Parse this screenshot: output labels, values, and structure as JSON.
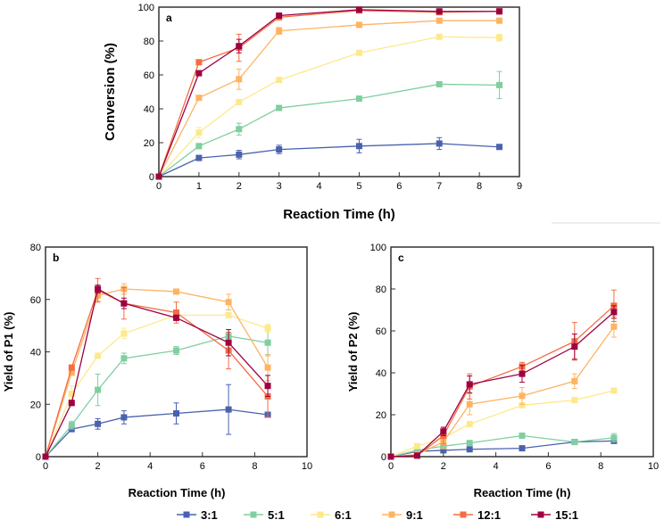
{
  "chart_data": [
    {
      "type": "line",
      "panel": "a",
      "title": "",
      "xlabel": "Reaction Time (h)",
      "ylabel": "Conversion (%)",
      "xlim": [
        0,
        9
      ],
      "ylim": [
        0,
        100
      ],
      "xticks": [
        0,
        1,
        2,
        3,
        4,
        5,
        6,
        7,
        8,
        9
      ],
      "yticks": [
        0,
        20,
        40,
        60,
        80,
        100
      ],
      "x": [
        0,
        1,
        2,
        3,
        5,
        7,
        8.5
      ],
      "series": [
        {
          "name": "3:1",
          "values": [
            0,
            11,
            13,
            16,
            18,
            19.5,
            17.5
          ],
          "err": [
            0,
            1.5,
            2.5,
            2.5,
            4,
            3.5,
            1
          ]
        },
        {
          "name": "5:1",
          "values": [
            0,
            18,
            28,
            40.5,
            46,
            54.5,
            54
          ],
          "err": [
            0,
            1.5,
            3.5,
            1.5,
            1,
            1,
            8
          ]
        },
        {
          "name": "6:1",
          "values": [
            0,
            26,
            44,
            57,
            73,
            82.5,
            82
          ],
          "err": [
            0,
            3,
            1.5,
            1.5,
            1,
            1,
            2
          ]
        },
        {
          "name": "9:1",
          "values": [
            0,
            46.5,
            57.5,
            86,
            89.5,
            92,
            92
          ],
          "err": [
            0,
            1,
            6,
            2,
            1,
            1,
            1
          ]
        },
        {
          "name": "12:1",
          "values": [
            0,
            67.5,
            76,
            94,
            98,
            97,
            97.5
          ],
          "err": [
            0,
            1,
            8,
            1,
            1,
            1,
            1
          ]
        },
        {
          "name": "15:1",
          "values": [
            0,
            61,
            77,
            95,
            98.5,
            97.5,
            97.5
          ],
          "err": [
            0,
            1,
            4,
            1,
            1,
            1,
            1
          ]
        }
      ]
    },
    {
      "type": "line",
      "panel": "b",
      "title": "",
      "xlabel": "Reaction Time (h)",
      "ylabel": "Yield of P1 (%)",
      "xlim": [
        0,
        10
      ],
      "ylim": [
        0,
        80
      ],
      "xticks": [
        0,
        2,
        4,
        6,
        8,
        10
      ],
      "yticks": [
        0,
        20,
        40,
        60,
        80
      ],
      "x": [
        0,
        1,
        2,
        3,
        5,
        7,
        8.5
      ],
      "series": [
        {
          "name": "3:1",
          "values": [
            0,
            10.5,
            12.5,
            15,
            16.5,
            18,
            16
          ],
          "err": [
            0,
            0.5,
            2,
            2.5,
            4,
            9.5,
            1
          ]
        },
        {
          "name": "5:1",
          "values": [
            0,
            12,
            25.5,
            37.5,
            40.5,
            46,
            43.5
          ],
          "err": [
            0,
            1.5,
            6,
            2,
            1.5,
            1,
            5
          ]
        },
        {
          "name": "6:1",
          "values": [
            0,
            24,
            38.5,
            47,
            54,
            54,
            49
          ],
          "err": [
            0,
            3,
            1,
            2,
            1,
            1,
            1.5
          ]
        },
        {
          "name": "9:1",
          "values": [
            0,
            32,
            61.5,
            64,
            63,
            59,
            34
          ],
          "err": [
            0,
            1,
            2,
            2,
            1,
            3,
            5
          ]
        },
        {
          "name": "12:1",
          "values": [
            0,
            34,
            63.5,
            58.5,
            55,
            40.5,
            23
          ],
          "err": [
            0,
            1,
            4.5,
            6,
            4,
            7,
            8
          ]
        },
        {
          "name": "15:1",
          "values": [
            0,
            20.5,
            64,
            58.5,
            53,
            43.5,
            27
          ],
          "err": [
            0,
            1,
            1.5,
            2,
            1,
            5,
            4
          ]
        }
      ]
    },
    {
      "type": "line",
      "panel": "c",
      "title": "",
      "xlabel": "Reaction Time (h)",
      "ylabel": "Yield of P2 (%)",
      "xlim": [
        0,
        10
      ],
      "ylim": [
        0,
        100
      ],
      "xticks": [
        0,
        2,
        4,
        6,
        8,
        10
      ],
      "yticks": [
        0,
        20,
        40,
        60,
        80,
        100
      ],
      "x": [
        0,
        1,
        2,
        3,
        5,
        7,
        8.5
      ],
      "series": [
        {
          "name": "3:1",
          "values": [
            0,
            2.5,
            3,
            3.5,
            4,
            7,
            7.5
          ],
          "err": [
            0,
            0.5,
            0.5,
            0.5,
            0.5,
            0.5,
            1
          ]
        },
        {
          "name": "5:1",
          "values": [
            0,
            3,
            5,
            6.5,
            10,
            7,
            9
          ],
          "err": [
            0,
            0.5,
            0.5,
            0.5,
            0.5,
            1,
            2
          ]
        },
        {
          "name": "6:1",
          "values": [
            0,
            5,
            9,
            15.5,
            24.5,
            27,
            31.5
          ],
          "err": [
            0,
            0.5,
            1,
            1,
            1,
            1,
            1
          ]
        },
        {
          "name": "9:1",
          "values": [
            0,
            1,
            7,
            25,
            29,
            36,
            62
          ],
          "err": [
            0,
            0.5,
            3,
            5,
            4,
            3.5,
            5
          ]
        },
        {
          "name": "12:1",
          "values": [
            0,
            0.5,
            10,
            33.5,
            43,
            55,
            72
          ],
          "err": [
            0,
            0.5,
            4,
            6,
            2,
            9,
            7.5
          ]
        },
        {
          "name": "15:1",
          "values": [
            0,
            0.5,
            12,
            34.5,
            39.5,
            52.5,
            69
          ],
          "err": [
            0,
            0.5,
            2,
            4,
            4,
            6,
            3
          ]
        }
      ]
    }
  ],
  "legend": {
    "position": "bottom",
    "entries": [
      "3:1",
      "5:1",
      "6:1",
      "9:1",
      "12:1",
      "15:1"
    ]
  },
  "colors": {
    "3:1": "#4a62ae",
    "5:1": "#7fcfa0",
    "6:1": "#fde98c",
    "9:1": "#fdb462",
    "12:1": "#f46d43",
    "15:1": "#9e0142"
  }
}
